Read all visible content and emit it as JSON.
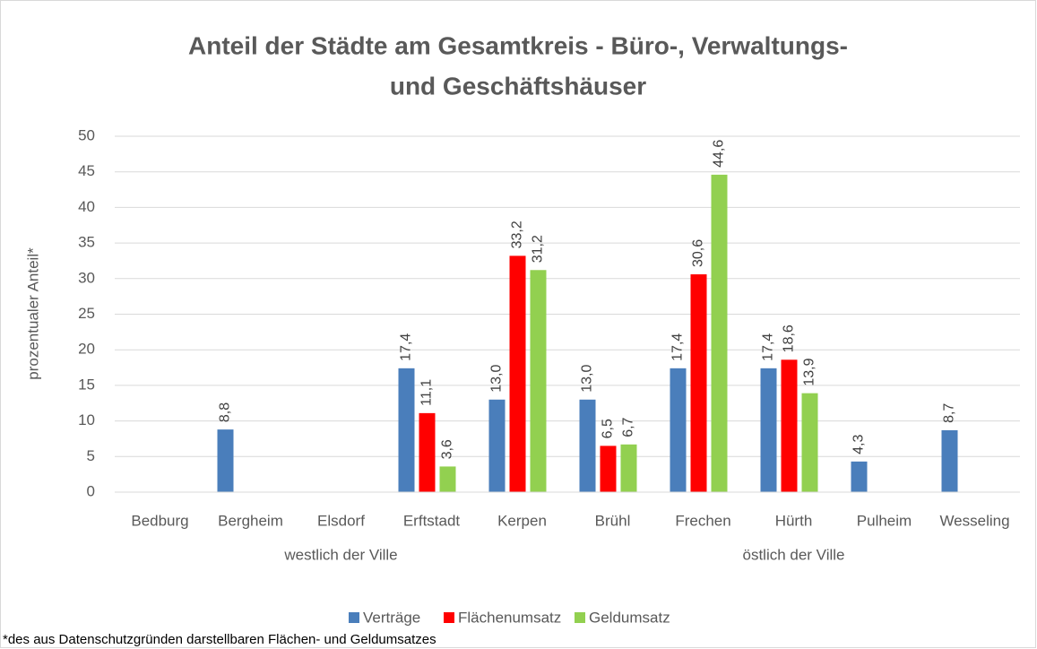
{
  "chart_data": {
    "type": "bar",
    "title": [
      "Anteil der Städte am Gesamtkreis - Büro-, Verwaltungs-",
      "und Geschäftshäuser"
    ],
    "y_label": "prozentualer Anteil*",
    "footnote": "*des aus Datenschutzgründen darstellbaren Flächen- und Geldumsatzes",
    "categories": [
      "Bedburg",
      "Bergheim",
      "Elsdorf",
      "Erftstadt",
      "Kerpen",
      "Brühl",
      "Frechen",
      "Hürth",
      "Pulheim",
      "Wesseling"
    ],
    "groups": [
      {
        "label": "westlich der Ville",
        "count": 5
      },
      {
        "label": "östlich der Ville",
        "count": 5
      }
    ],
    "series": [
      {
        "name": "Verträge",
        "color": "#4a7ebb",
        "values": [
          null,
          8.8,
          null,
          17.4,
          13.0,
          13.0,
          17.4,
          17.4,
          4.3,
          8.7
        ],
        "value_labels": [
          null,
          "8,8",
          null,
          "17,4",
          "13,0",
          "13,0",
          "17,4",
          "17,4",
          "4,3",
          "8,7"
        ]
      },
      {
        "name": "Flächenumsatz",
        "color": "#ff0000",
        "values": [
          null,
          null,
          null,
          11.1,
          33.2,
          6.5,
          30.6,
          18.6,
          null,
          null
        ],
        "value_labels": [
          null,
          null,
          null,
          "11,1",
          "33,2",
          "6,5",
          "30,6",
          "18,6",
          null,
          null
        ]
      },
      {
        "name": "Geldumsatz",
        "color": "#92d050",
        "values": [
          null,
          null,
          null,
          3.6,
          31.2,
          6.7,
          44.6,
          13.9,
          null,
          null
        ],
        "value_labels": [
          null,
          null,
          null,
          "3,6",
          "31,2",
          "6,7",
          "44,6",
          "13,9",
          null,
          null
        ]
      }
    ],
    "ylim": [
      0,
      50
    ],
    "yticks": [
      0,
      5,
      10,
      15,
      20,
      25,
      30,
      35,
      40,
      45,
      50
    ],
    "grid": true,
    "legend": "bottom"
  }
}
